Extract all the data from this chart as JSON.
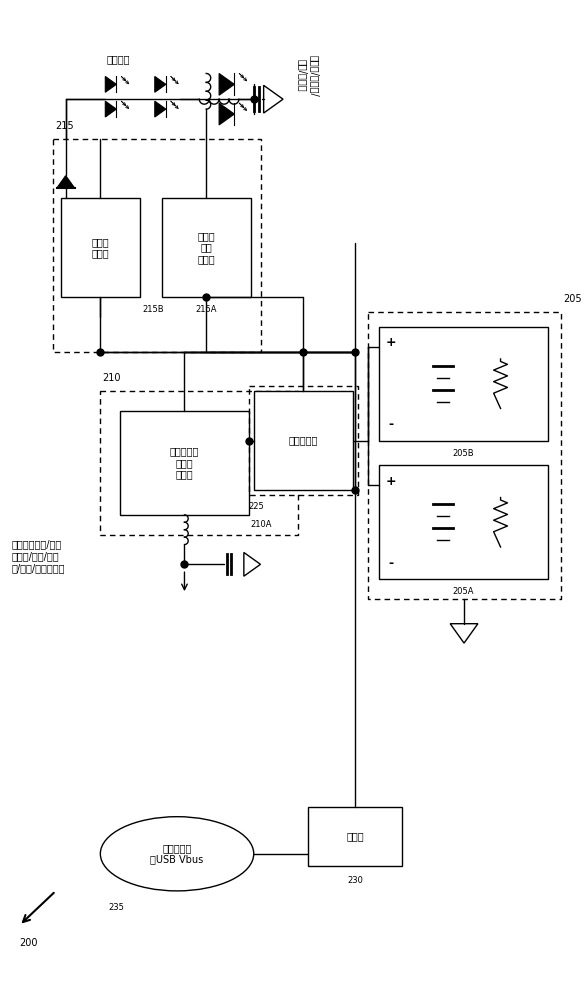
{
  "bg_color": "#ffffff",
  "line_color": "#000000",
  "fs": 7,
  "fs_small": 6,
  "components": {
    "label_200": "200",
    "label_215": "215",
    "label_215A": "215A",
    "label_215B": "215B",
    "label_210": "210",
    "label_210A": "210A",
    "label_225": "225",
    "label_205": "205",
    "label_205A": "205A",
    "label_205B": "205B",
    "label_230": "230",
    "label_235": "235",
    "text_boost": "升压式\n转换器",
    "text_dcdc215": "直流对\n直流\n转换器",
    "text_buck": "降压式直流\n对直流\n转换器",
    "text_mux": "电源多工器",
    "text_charger": "充电器",
    "text_adapter": "交流转接器\n或USB Vbus",
    "text_backlight": "（背光）",
    "text_load1": "（音频/闪光灯/\n相机/显示）",
    "text_cpu": "（中央处理器/图形\n处理器/核心/存储\n器/射频/输入输出）"
  }
}
